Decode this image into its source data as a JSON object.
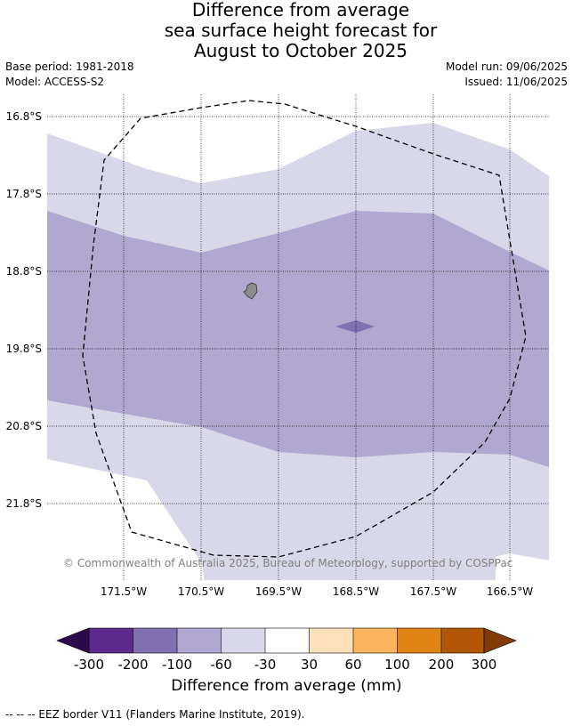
{
  "title": {
    "line1": "Difference from average",
    "line2": "sea surface height forecast for",
    "line3": "August to October 2025"
  },
  "meta": {
    "base_period": "Base period: 1981-2018",
    "model": "Model: ACCESS-S2",
    "model_run": "Model run: 09/06/2025",
    "issued": "Issued: 11/06/2025"
  },
  "map": {
    "lat_labels": [
      "16.8°S",
      "17.8°S",
      "18.8°S",
      "19.8°S",
      "20.8°S",
      "21.8°S"
    ],
    "lon_labels": [
      "171.5°W",
      "170.5°W",
      "169.5°W",
      "168.5°W",
      "167.5°W",
      "166.5°W"
    ],
    "copyright": "© Commonwealth of Australia 2025, Bureau of Meteorology, supported by COSPPac"
  },
  "colorbar": {
    "title": "Difference from average (mm)",
    "ticks": [
      "-300",
      "-200",
      "-100",
      "-60",
      "-30",
      "30",
      "60",
      "100",
      "200",
      "300"
    ],
    "colors": [
      "#2d0a4e",
      "#5c2a8c",
      "#8070b0",
      "#b0a8d0",
      "#d8d8ea",
      "#ffffff",
      "#fde0b8",
      "#fab45c",
      "#e08214",
      "#b35806",
      "#7f3b08"
    ]
  },
  "footer": "-- -- -- EEZ border V11 (Flanders Marine Institute, 2019).",
  "legend_colors": {
    "band_-60_-30": "#d8d8ea",
    "band_-100_-60": "#b0a8d0",
    "band_-200_-100": "#8070b0",
    "land": "#8c8c8c"
  }
}
